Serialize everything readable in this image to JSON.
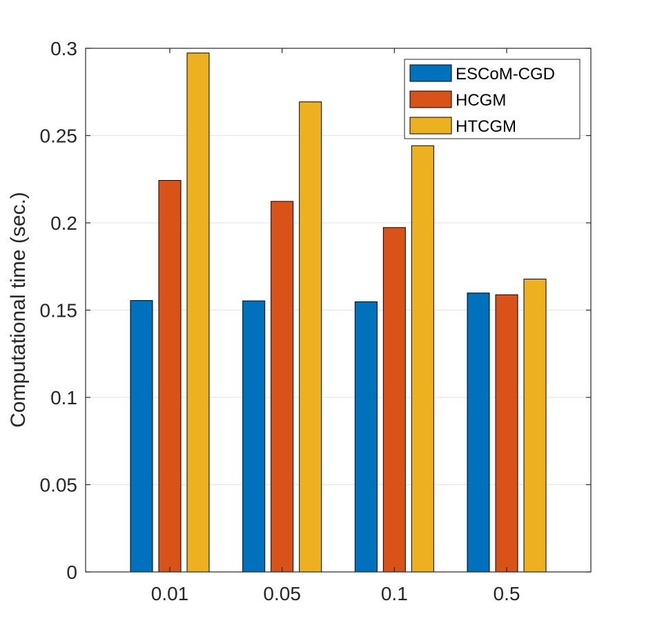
{
  "chart_data": {
    "type": "bar",
    "title": "",
    "xlabel": "",
    "ylabel": "Computational time (sec.)",
    "categories": [
      "0.01",
      "0.05",
      "0.1",
      "0.5"
    ],
    "series": [
      {
        "name": "ESCoM-CGD",
        "color": "#0072BD",
        "values": [
          0.1555,
          0.1553,
          0.1548,
          0.1598
        ]
      },
      {
        "name": "HCGM",
        "color": "#D95319",
        "values": [
          0.2243,
          0.2123,
          0.1973,
          0.1588
        ]
      },
      {
        "name": "HTCGM",
        "color": "#EDB120",
        "values": [
          0.2973,
          0.2693,
          0.2442,
          0.1678
        ]
      }
    ],
    "ylim": [
      0,
      0.3
    ],
    "yticks": [
      "0",
      "0.05",
      "0.1",
      "0.15",
      "0.2",
      "0.25",
      "0.3"
    ],
    "grid": true,
    "legend_position": "top-right"
  }
}
